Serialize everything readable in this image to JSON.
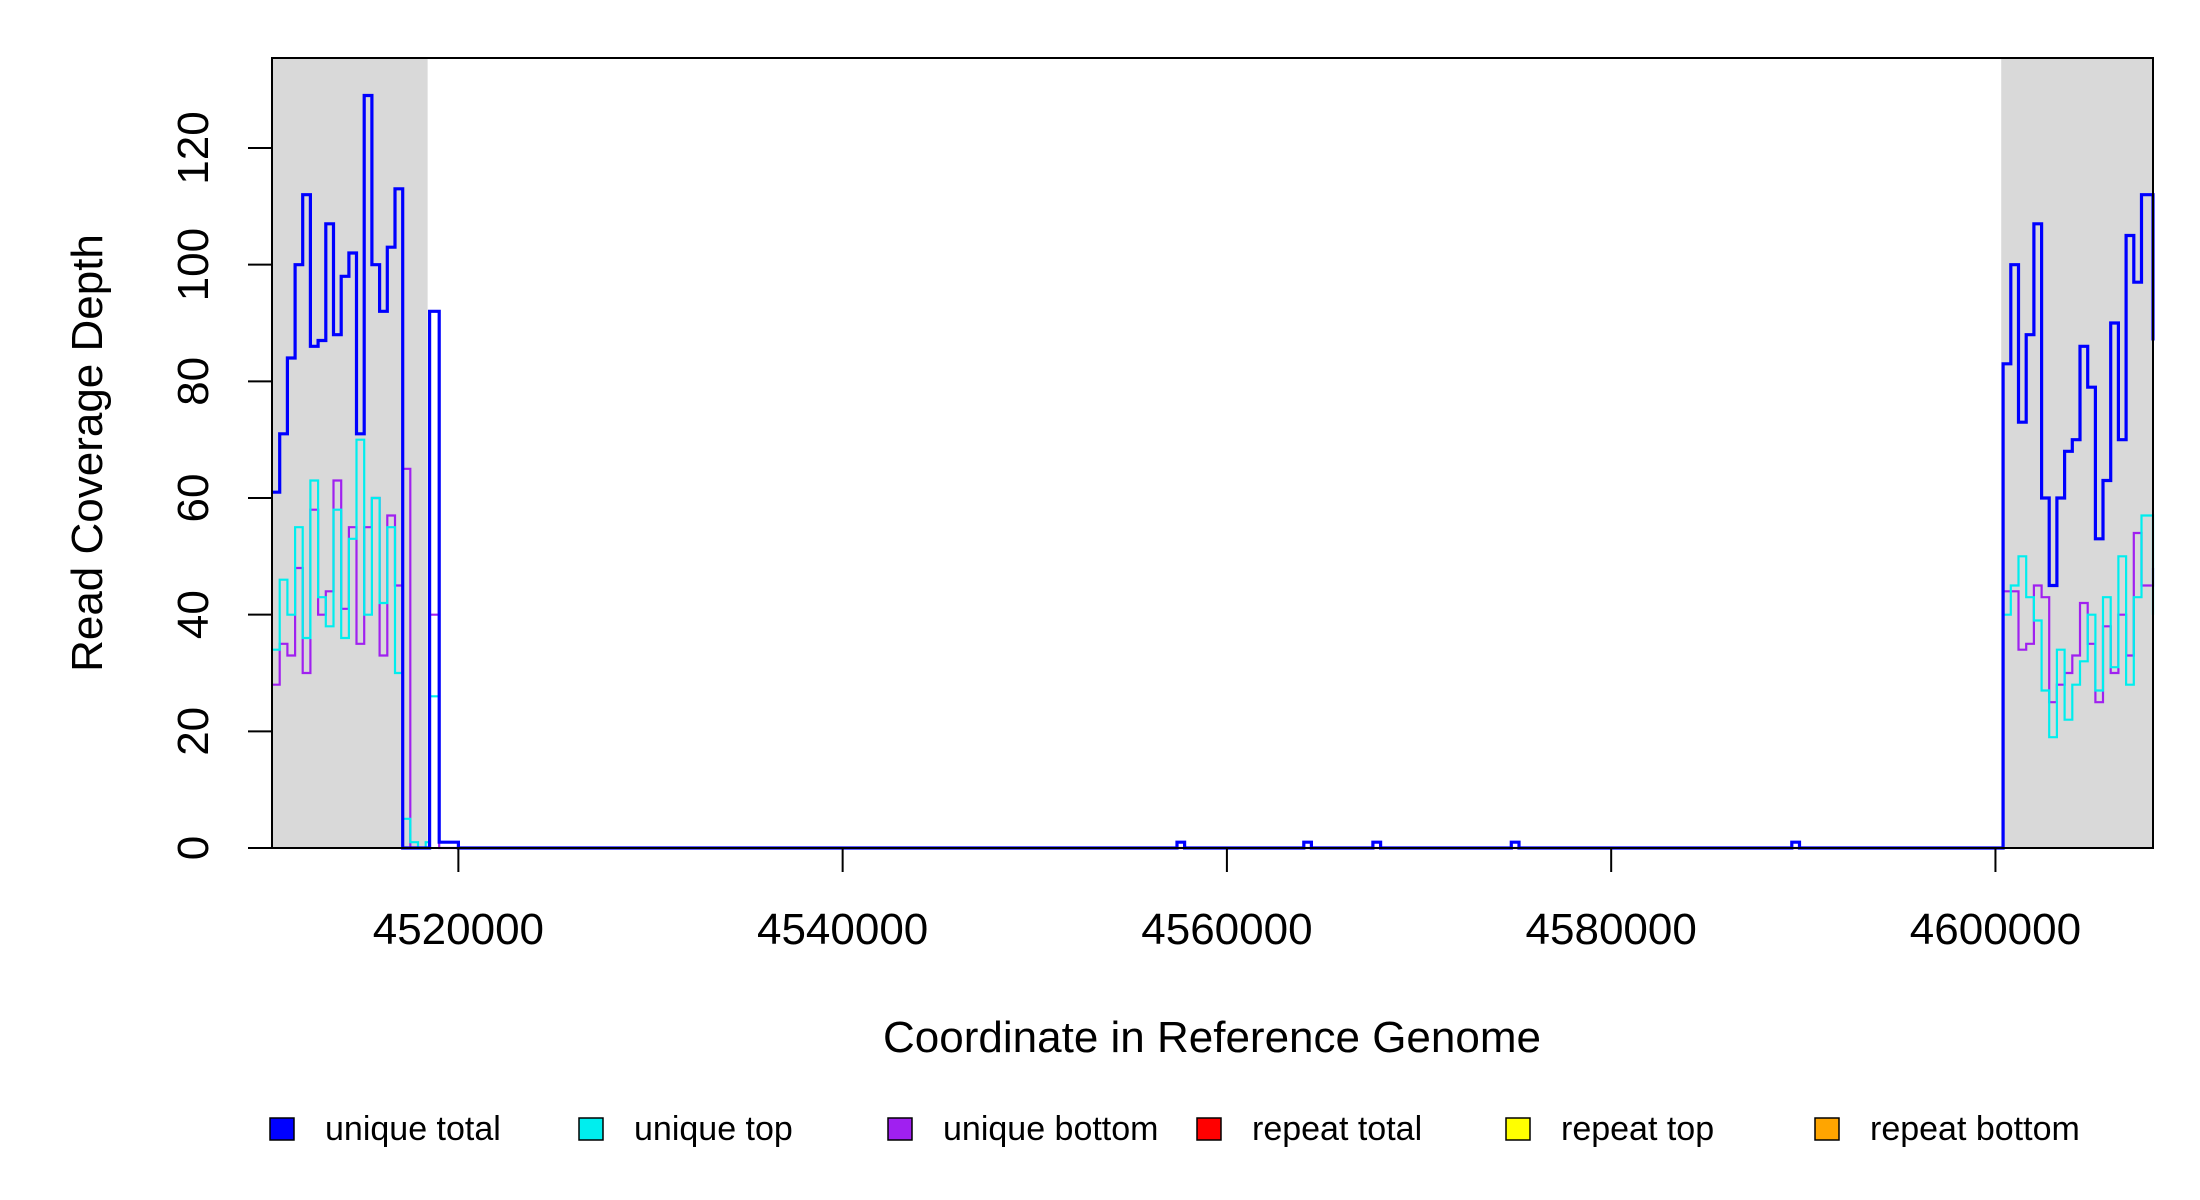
{
  "chart_data": {
    "type": "line",
    "title": "",
    "xlabel": "Coordinate in Reference Genome",
    "ylabel": "Read Coverage Depth",
    "xlim": [
      4510300,
      4608200
    ],
    "ylim": [
      0,
      130
    ],
    "x_ticks": [
      4520000,
      4540000,
      4560000,
      4580000,
      4600000
    ],
    "y_ticks": [
      0,
      20,
      40,
      60,
      80,
      100,
      120
    ],
    "grid": false,
    "legend_position": "bottom",
    "shaded_regions": [
      {
        "x0": 4510300,
        "x1": 4518400,
        "color": "#d9d9d9"
      },
      {
        "x0": 4600300,
        "x1": 4608200,
        "color": "#d9d9d9"
      }
    ],
    "x": [
      4510300,
      4510700,
      4511100,
      4511500,
      4511900,
      4512300,
      4512700,
      4513100,
      4513500,
      4513900,
      4514300,
      4514700,
      4515100,
      4515500,
      4515900,
      4516300,
      4516700,
      4517100,
      4517500,
      4517900,
      4518300,
      4518500,
      4519000,
      4519600,
      4520000,
      4530000,
      4540000,
      4550000,
      4557000,
      4557400,
      4557800,
      4560000,
      4563600,
      4564000,
      4564400,
      4567200,
      4567600,
      4568000,
      4574400,
      4574800,
      4575200,
      4589000,
      4589400,
      4589800,
      4600200,
      4600400,
      4600800,
      4601200,
      4601600,
      4602000,
      4602400,
      4602800,
      4603200,
      4603600,
      4604000,
      4604400,
      4604800,
      4605200,
      4605600,
      4606000,
      4606400,
      4606800,
      4607200,
      4607600,
      4608200
    ],
    "series": [
      {
        "name": "unique total",
        "color": "#0000ff",
        "width": 3.2,
        "values": [
          61,
          71,
          84,
          100,
          112,
          86,
          87,
          107,
          88,
          98,
          102,
          71,
          129,
          100,
          92,
          103,
          113,
          0,
          0,
          0,
          0,
          92,
          1,
          1,
          0,
          0,
          0,
          0,
          0,
          1,
          0,
          0,
          0,
          1,
          0,
          0,
          1,
          0,
          0,
          1,
          0,
          0,
          1,
          0,
          0,
          83,
          100,
          73,
          88,
          107,
          60,
          45,
          60,
          68,
          70,
          86,
          79,
          53,
          63,
          90,
          70,
          105,
          97,
          112,
          87
        ]
      },
      {
        "name": "unique top",
        "color": "#00eeee",
        "width": 2.2,
        "values": [
          34,
          46,
          40,
          55,
          36,
          63,
          43,
          38,
          58,
          36,
          53,
          70,
          40,
          60,
          42,
          55,
          30,
          5,
          1,
          0,
          1,
          26,
          1,
          1,
          0,
          0,
          0,
          0,
          0,
          1,
          0,
          0,
          0,
          1,
          0,
          0,
          1,
          0,
          0,
          1,
          0,
          0,
          1,
          0,
          0,
          40,
          45,
          50,
          43,
          39,
          27,
          19,
          34,
          22,
          28,
          32,
          40,
          27,
          43,
          31,
          50,
          28,
          43,
          57,
          40
        ]
      },
      {
        "name": "unique bottom",
        "color": "#a020f0",
        "width": 2.2,
        "values": [
          28,
          35,
          33,
          48,
          30,
          58,
          40,
          44,
          63,
          41,
          55,
          35,
          55,
          60,
          33,
          57,
          45,
          65,
          0,
          0,
          0,
          40,
          0,
          0,
          0,
          0,
          0,
          0,
          0,
          0,
          0,
          0,
          0,
          0,
          0,
          0,
          0,
          0,
          0,
          0,
          0,
          0,
          0,
          0,
          0,
          44,
          44,
          34,
          35,
          45,
          43,
          25,
          28,
          30,
          33,
          42,
          35,
          25,
          38,
          30,
          40,
          33,
          54,
          45,
          48
        ]
      },
      {
        "name": "repeat total",
        "color": "#ff0000",
        "width": 2,
        "values": "all zero"
      },
      {
        "name": "repeat top",
        "color": "#ffff00",
        "width": 2,
        "values": "all zero"
      },
      {
        "name": "repeat bottom",
        "color": "#ffa500",
        "width": 2,
        "values": "all zero"
      }
    ]
  }
}
